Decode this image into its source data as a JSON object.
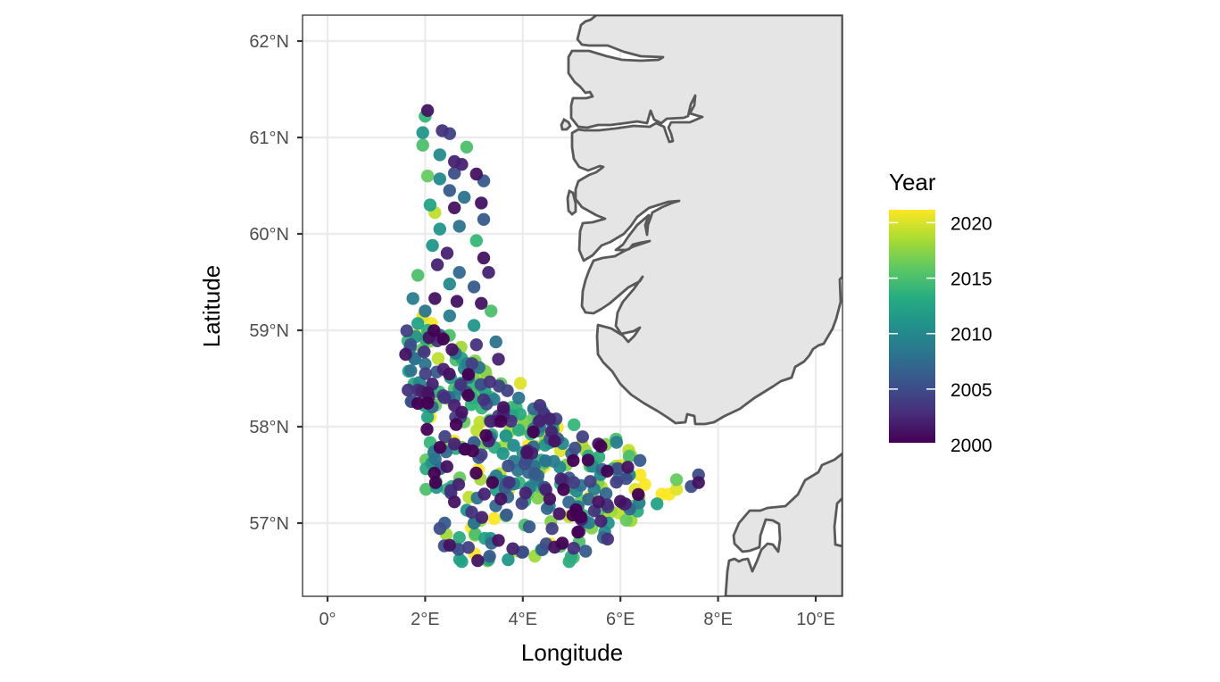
{
  "chart_data": {
    "type": "scatter",
    "title": "",
    "xlabel": "Longitude",
    "ylabel": "Latitude",
    "xlim": [
      -0.5,
      10.5
    ],
    "ylim": [
      56.25,
      62.27
    ],
    "grid": true,
    "x_ticks": [
      {
        "value": 0,
        "label": "0°"
      },
      {
        "value": 2,
        "label": "2°E"
      },
      {
        "value": 4,
        "label": "4°E"
      },
      {
        "value": 6,
        "label": "6°E"
      },
      {
        "value": 8,
        "label": "8°E"
      },
      {
        "value": 10,
        "label": "10°E"
      }
    ],
    "y_ticks": [
      {
        "value": 57,
        "label": "57°N"
      },
      {
        "value": 58,
        "label": "58°N"
      },
      {
        "value": 59,
        "label": "59°N"
      },
      {
        "value": 60,
        "label": "60°N"
      },
      {
        "value": 61,
        "label": "61°N"
      },
      {
        "value": 62,
        "label": "62°N"
      }
    ],
    "legend": {
      "title": "Year",
      "position": "right",
      "type": "continuous-colorbar",
      "palette": "viridis",
      "range": [
        2000,
        2021
      ],
      "breaks": [
        2000,
        2005,
        2010,
        2015,
        2020
      ],
      "break_labels": [
        "2000",
        "2005",
        "2010",
        "2015",
        "2020"
      ],
      "colors": [
        "#440154",
        "#3b528b",
        "#21908c",
        "#5dc863",
        "#fde725"
      ]
    },
    "land_fill": "#e5e5e5",
    "land_outline": "#595959",
    "series_description": "Survey station points (~600) in the North Sea, colored by sampling year 2000–2021; dense along 2–3.5°E from 58.3°N to 61.3°N and across 2–7.7°E between 56.6°N and 58.5°N (Skagerrak approach).",
    "points": [
      {
        "lon": 2.05,
        "lat": 61.28,
        "year": 2001
      },
      {
        "lon": 2.0,
        "lat": 61.22,
        "year": 2014
      },
      {
        "lon": 1.95,
        "lat": 61.05,
        "year": 2011
      },
      {
        "lon": 2.35,
        "lat": 61.07,
        "year": 2003
      },
      {
        "lon": 2.5,
        "lat": 61.04,
        "year": 2004
      },
      {
        "lon": 1.95,
        "lat": 60.92,
        "year": 2015
      },
      {
        "lon": 2.85,
        "lat": 60.9,
        "year": 2015
      },
      {
        "lon": 2.3,
        "lat": 60.82,
        "year": 2010
      },
      {
        "lon": 2.6,
        "lat": 60.75,
        "year": 2002
      },
      {
        "lon": 2.75,
        "lat": 60.72,
        "year": 2002
      },
      {
        "lon": 2.6,
        "lat": 60.63,
        "year": 2005
      },
      {
        "lon": 3.05,
        "lat": 60.62,
        "year": 2001
      },
      {
        "lon": 3.2,
        "lat": 60.55,
        "year": 2006
      },
      {
        "lon": 2.05,
        "lat": 60.6,
        "year": 2016
      },
      {
        "lon": 2.3,
        "lat": 60.57,
        "year": 2010
      },
      {
        "lon": 2.5,
        "lat": 60.45,
        "year": 2006
      },
      {
        "lon": 2.8,
        "lat": 60.38,
        "year": 2008
      },
      {
        "lon": 3.15,
        "lat": 60.32,
        "year": 2001
      },
      {
        "lon": 2.6,
        "lat": 60.27,
        "year": 2001
      },
      {
        "lon": 2.1,
        "lat": 60.3,
        "year": 2012
      },
      {
        "lon": 2.2,
        "lat": 60.22,
        "year": 2019
      },
      {
        "lon": 3.2,
        "lat": 60.15,
        "year": 2006
      },
      {
        "lon": 2.7,
        "lat": 60.08,
        "year": 2008
      },
      {
        "lon": 2.3,
        "lat": 60.05,
        "year": 2011
      },
      {
        "lon": 3.05,
        "lat": 59.93,
        "year": 2014
      },
      {
        "lon": 2.15,
        "lat": 59.88,
        "year": 2011
      },
      {
        "lon": 2.45,
        "lat": 59.8,
        "year": 2002
      },
      {
        "lon": 3.2,
        "lat": 59.75,
        "year": 2001
      },
      {
        "lon": 2.25,
        "lat": 59.68,
        "year": 2002
      },
      {
        "lon": 1.85,
        "lat": 59.57,
        "year": 2015
      },
      {
        "lon": 2.7,
        "lat": 59.6,
        "year": 2007
      },
      {
        "lon": 3.3,
        "lat": 59.6,
        "year": 2002
      },
      {
        "lon": 2.5,
        "lat": 59.48,
        "year": 2010
      },
      {
        "lon": 3.0,
        "lat": 59.45,
        "year": 2006
      },
      {
        "lon": 1.75,
        "lat": 59.33,
        "year": 2009
      },
      {
        "lon": 2.2,
        "lat": 59.33,
        "year": 2001
      },
      {
        "lon": 2.65,
        "lat": 59.3,
        "year": 2001
      },
      {
        "lon": 3.15,
        "lat": 59.28,
        "year": 2001
      },
      {
        "lon": 3.35,
        "lat": 59.2,
        "year": 2015
      },
      {
        "lon": 2.0,
        "lat": 59.2,
        "year": 2008
      },
      {
        "lon": 2.5,
        "lat": 59.15,
        "year": 2009
      },
      {
        "lon": 1.85,
        "lat": 59.07,
        "year": 2012
      },
      {
        "lon": 3.0,
        "lat": 59.05,
        "year": 2011
      },
      {
        "lon": 2.3,
        "lat": 58.95,
        "year": 2007
      },
      {
        "lon": 1.7,
        "lat": 58.85,
        "year": 2005
      },
      {
        "lon": 2.55,
        "lat": 58.8,
        "year": 2001
      },
      {
        "lon": 3.05,
        "lat": 58.85,
        "year": 2003
      },
      {
        "lon": 3.45,
        "lat": 58.88,
        "year": 2008
      },
      {
        "lon": 1.6,
        "lat": 58.75,
        "year": 2001
      },
      {
        "lon": 3.5,
        "lat": 58.7,
        "year": 2002
      },
      {
        "lon": 2.0,
        "lat": 58.65,
        "year": 2008
      },
      {
        "lon": 2.8,
        "lat": 58.6,
        "year": 2010
      },
      {
        "lon": 3.95,
        "lat": 58.45,
        "year": 2020
      },
      {
        "lon": 1.65,
        "lat": 58.38,
        "year": 2003
      },
      {
        "lon": 1.85,
        "lat": 58.38,
        "year": 2003
      },
      {
        "lon": 2.05,
        "lat": 58.35,
        "year": 2001
      },
      {
        "lon": 2.6,
        "lat": 58.22,
        "year": 2002
      },
      {
        "lon": 3.2,
        "lat": 58.28,
        "year": 2003
      },
      {
        "lon": 4.35,
        "lat": 58.22,
        "year": 2003
      },
      {
        "lon": 3.6,
        "lat": 58.12,
        "year": 2002
      },
      {
        "lon": 4.55,
        "lat": 58.08,
        "year": 2002
      },
      {
        "lon": 2.75,
        "lat": 58.15,
        "year": 2001
      },
      {
        "lon": 2.05,
        "lat": 58.1,
        "year": 2012
      },
      {
        "lon": 5.05,
        "lat": 58.02,
        "year": 2014
      },
      {
        "lon": 2.6,
        "lat": 57.82,
        "year": 2002
      },
      {
        "lon": 3.3,
        "lat": 57.85,
        "year": 2002
      },
      {
        "lon": 4.65,
        "lat": 57.85,
        "year": 2001
      },
      {
        "lon": 5.55,
        "lat": 57.82,
        "year": 2001
      },
      {
        "lon": 4.1,
        "lat": 57.75,
        "year": 2002
      },
      {
        "lon": 5.0,
        "lat": 57.72,
        "year": 2007
      },
      {
        "lon": 6.15,
        "lat": 57.58,
        "year": 2001
      },
      {
        "lon": 6.4,
        "lat": 57.65,
        "year": 2006
      },
      {
        "lon": 6.4,
        "lat": 57.5,
        "year": 2021
      },
      {
        "lon": 6.5,
        "lat": 57.4,
        "year": 2021
      },
      {
        "lon": 6.3,
        "lat": 57.35,
        "year": 2020
      },
      {
        "lon": 6.85,
        "lat": 57.3,
        "year": 2021
      },
      {
        "lon": 7.0,
        "lat": 57.3,
        "year": 2021
      },
      {
        "lon": 7.15,
        "lat": 57.35,
        "year": 2020
      },
      {
        "lon": 7.15,
        "lat": 57.45,
        "year": 2016
      },
      {
        "lon": 6.75,
        "lat": 57.2,
        "year": 2012
      },
      {
        "lon": 7.45,
        "lat": 57.38,
        "year": 2005
      },
      {
        "lon": 7.6,
        "lat": 57.42,
        "year": 2001
      },
      {
        "lon": 7.6,
        "lat": 57.5,
        "year": 2005
      },
      {
        "lon": 2.45,
        "lat": 57.35,
        "year": 2014
      },
      {
        "lon": 2.6,
        "lat": 57.22,
        "year": 2001
      },
      {
        "lon": 3.55,
        "lat": 57.25,
        "year": 2001
      },
      {
        "lon": 4.55,
        "lat": 57.25,
        "year": 2001
      },
      {
        "lon": 5.55,
        "lat": 57.22,
        "year": 2001
      },
      {
        "lon": 6.1,
        "lat": 57.2,
        "year": 2002
      },
      {
        "lon": 2.4,
        "lat": 57.0,
        "year": 2006
      },
      {
        "lon": 3.0,
        "lat": 57.0,
        "year": 2008
      },
      {
        "lon": 2.5,
        "lat": 56.77,
        "year": 2001
      },
      {
        "lon": 2.7,
        "lat": 56.85,
        "year": 2013
      },
      {
        "lon": 3.5,
        "lat": 56.82,
        "year": 2001
      },
      {
        "lon": 4.0,
        "lat": 56.7,
        "year": 2006
      },
      {
        "lon": 4.65,
        "lat": 56.75,
        "year": 2001
      },
      {
        "lon": 2.75,
        "lat": 56.6,
        "year": 2012
      },
      {
        "lon": 3.3,
        "lat": 56.62,
        "year": 2012
      },
      {
        "lon": 3.7,
        "lat": 56.62,
        "year": 2011
      },
      {
        "lon": 4.95,
        "lat": 56.6,
        "year": 2013
      },
      {
        "lon": 5.65,
        "lat": 56.85,
        "year": 2007
      }
    ]
  }
}
